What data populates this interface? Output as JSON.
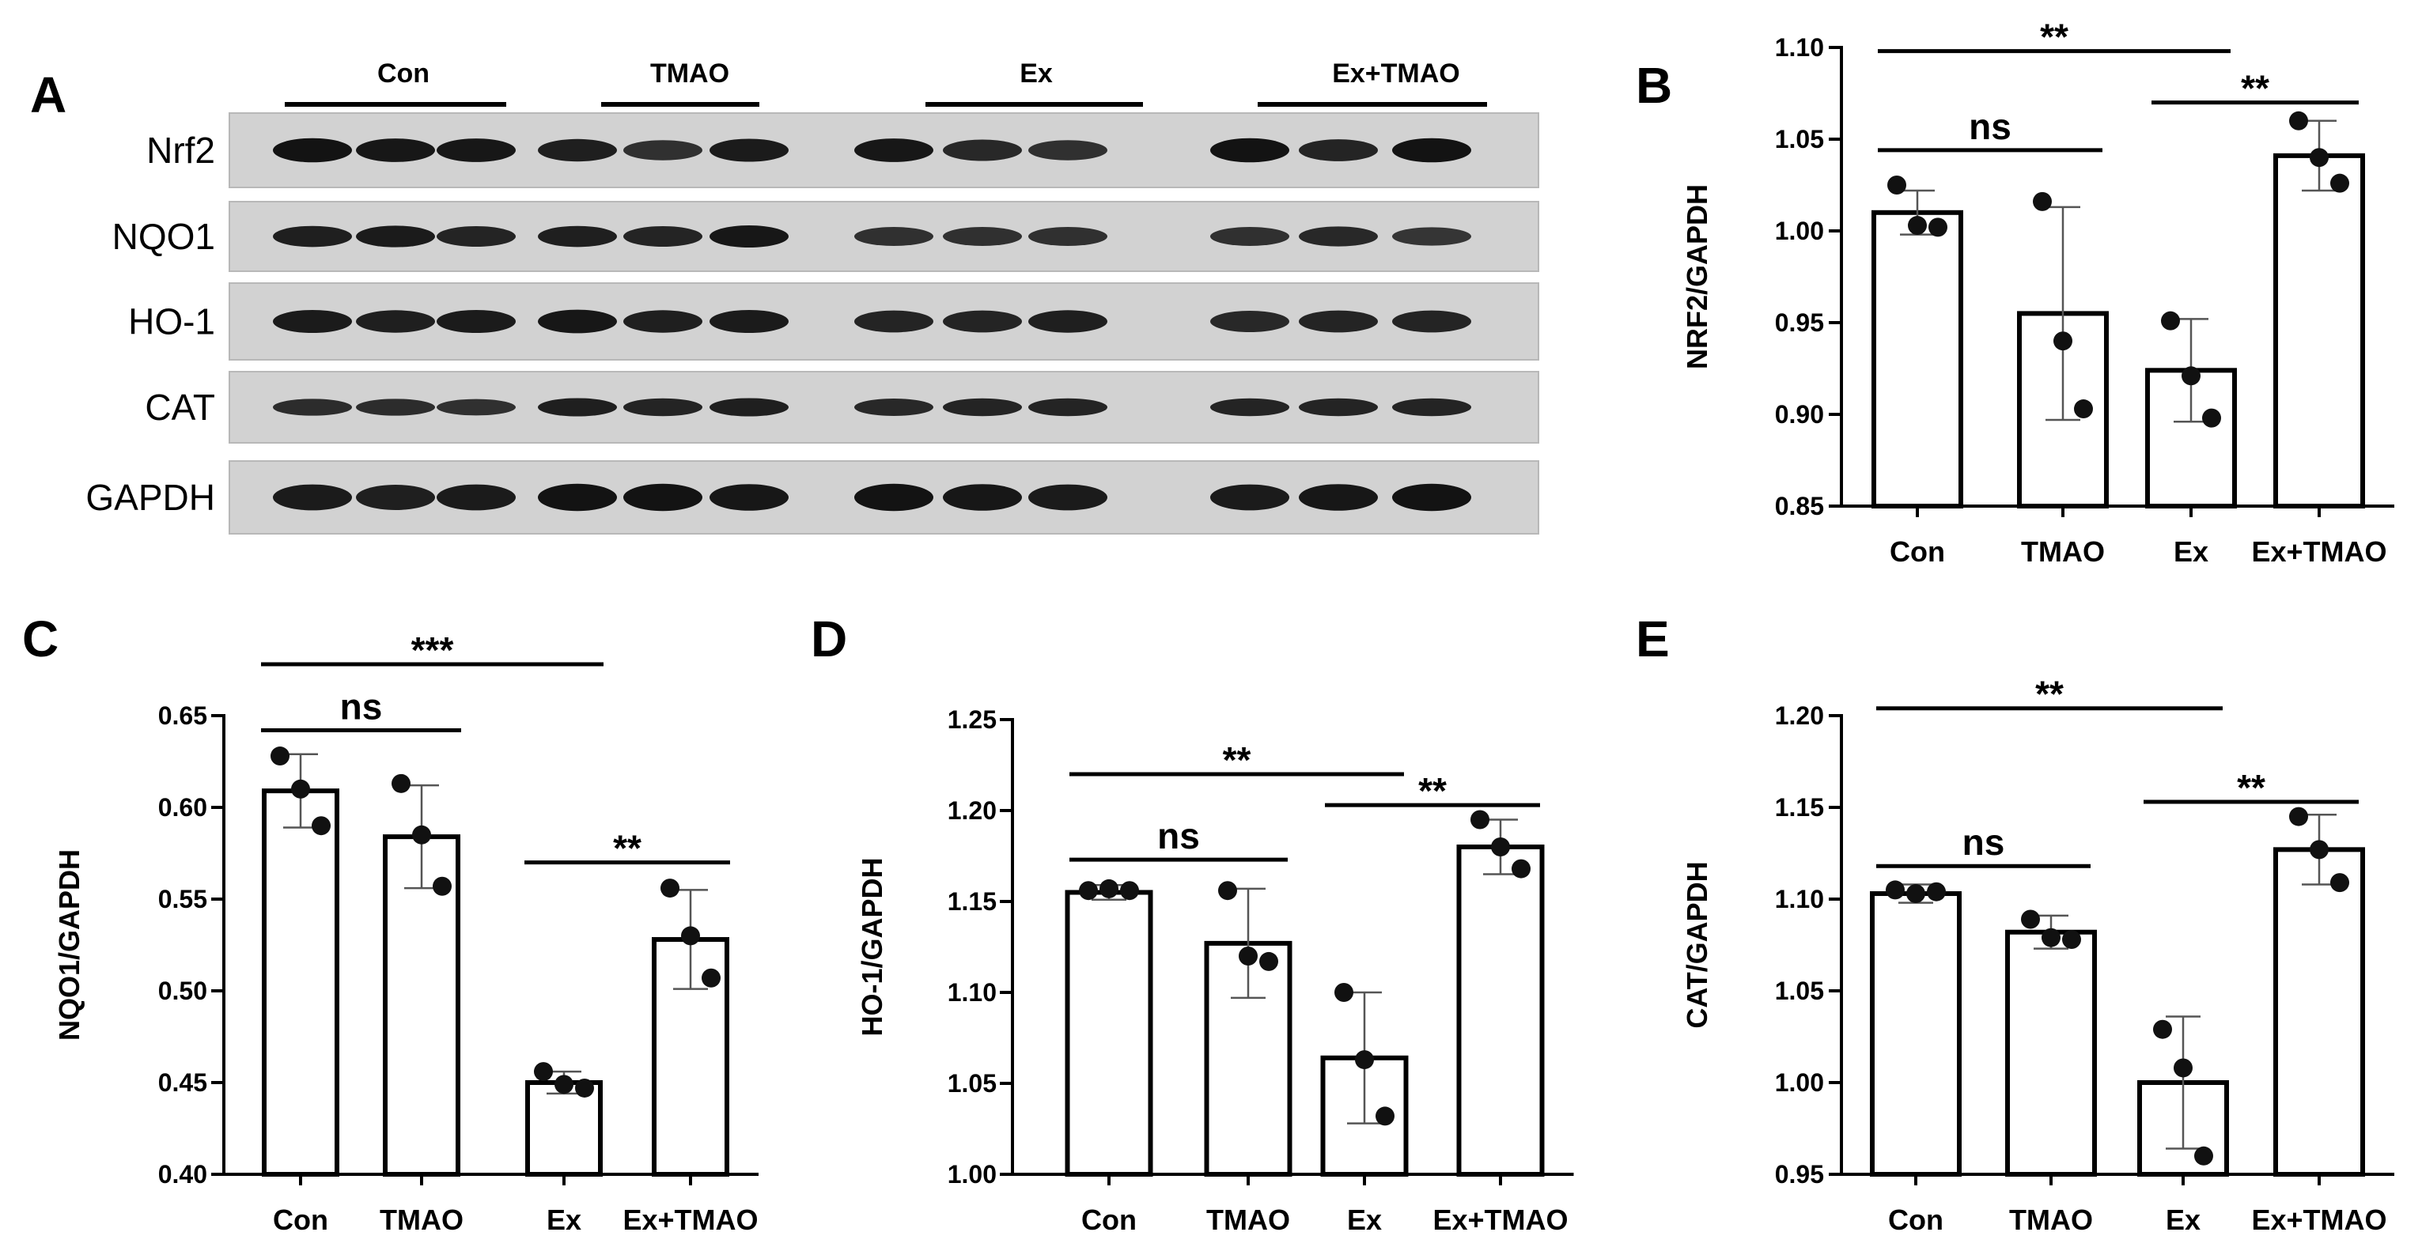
{
  "panel_a": {
    "letter": "A",
    "groups": [
      "Con",
      "TMAO",
      "Ex",
      "Ex+TMAO"
    ],
    "proteins": [
      {
        "label": "Nrf2",
        "intensities": [
          0.9,
          0.85,
          0.85,
          0.75,
          0.55,
          0.8,
          0.85,
          0.65,
          0.55,
          0.9,
          0.7,
          0.9
        ]
      },
      {
        "label": "NQO1",
        "intensities": [
          0.75,
          0.8,
          0.7,
          0.75,
          0.7,
          0.85,
          0.55,
          0.55,
          0.55,
          0.55,
          0.65,
          0.5
        ]
      },
      {
        "label": "HO-1",
        "intensities": [
          0.8,
          0.75,
          0.8,
          0.85,
          0.75,
          0.8,
          0.7,
          0.7,
          0.75,
          0.65,
          0.7,
          0.7
        ]
      },
      {
        "label": "CAT",
        "intensities": [
          0.6,
          0.6,
          0.55,
          0.75,
          0.7,
          0.75,
          0.65,
          0.7,
          0.7,
          0.7,
          0.7,
          0.7
        ]
      },
      {
        "label": "GAPDH",
        "intensities": [
          0.8,
          0.75,
          0.8,
          0.9,
          0.9,
          0.85,
          0.9,
          0.85,
          0.8,
          0.8,
          0.85,
          0.9
        ]
      }
    ]
  },
  "chart_data": [
    {
      "panel": "B",
      "type": "bar",
      "ylabel": "NRF2/GAPDH",
      "categories": [
        "Con",
        "TMAO",
        "Ex",
        "Ex+TMAO"
      ],
      "values": [
        1.01,
        0.955,
        0.924,
        1.041
      ],
      "errors": [
        0.012,
        0.058,
        0.028,
        0.019
      ],
      "points": [
        [
          1.025,
          1.003,
          1.002
        ],
        [
          1.016,
          0.94,
          0.903
        ],
        [
          0.951,
          0.921,
          0.898
        ],
        [
          1.06,
          1.04,
          1.026
        ]
      ],
      "ylim": [
        0.85,
        1.1
      ],
      "yticks": [
        "0.85",
        "0.90",
        "0.95",
        "1.00",
        "1.05",
        "1.10"
      ],
      "comparisons": [
        {
          "from": 0,
          "to": 2,
          "label": "**",
          "y": 1.098
        },
        {
          "from": 0,
          "to": 1,
          "label": "ns",
          "y": 1.044
        },
        {
          "from": 2,
          "to": 3,
          "label": "**",
          "y": 1.07
        }
      ]
    },
    {
      "panel": "C",
      "type": "bar",
      "ylabel": "NQO1/GAPDH",
      "categories": [
        "Con",
        "TMAO",
        "Ex",
        "Ex+TMAO"
      ],
      "values": [
        0.609,
        0.584,
        0.45,
        0.528
      ],
      "errors": [
        0.02,
        0.028,
        0.006,
        0.027
      ],
      "points": [
        [
          0.628,
          0.61,
          0.59
        ],
        [
          0.613,
          0.585,
          0.557
        ],
        [
          0.456,
          0.449,
          0.447
        ],
        [
          0.556,
          0.53,
          0.507
        ]
      ],
      "ylim": [
        0.4,
        0.65
      ],
      "yticks": [
        "0.40",
        "0.45",
        "0.50",
        "0.55",
        "0.60",
        "0.65"
      ],
      "comparisons": [
        {
          "from": 0,
          "to": 2,
          "label": "***",
          "y": 0.678
        },
        {
          "from": 0,
          "to": 1,
          "label": "ns",
          "y": 0.642
        },
        {
          "from": 2,
          "to": 3,
          "label": "**",
          "y": 0.57
        }
      ]
    },
    {
      "panel": "D",
      "type": "bar",
      "ylabel": "HO-1/GAPDH",
      "categories": [
        "Con",
        "TMAO",
        "Ex",
        "Ex+TMAO"
      ],
      "values": [
        1.155,
        1.127,
        1.064,
        1.18
      ],
      "errors": [
        0.004,
        0.03,
        0.036,
        0.015
      ],
      "points": [
        [
          1.156,
          1.157,
          1.156
        ],
        [
          1.156,
          1.12,
          1.117
        ],
        [
          1.1,
          1.063,
          1.032
        ],
        [
          1.195,
          1.18,
          1.168
        ]
      ],
      "ylim": [
        1.0,
        1.25
      ],
      "yticks": [
        "1.00",
        "1.05",
        "1.10",
        "1.15",
        "1.20",
        "1.25"
      ],
      "comparisons": [
        {
          "from": 0,
          "to": 2,
          "label": "**",
          "y": 1.22
        },
        {
          "from": 0,
          "to": 1,
          "label": "ns",
          "y": 1.173
        },
        {
          "from": 2,
          "to": 3,
          "label": "**",
          "y": 1.203
        }
      ]
    },
    {
      "panel": "E",
      "type": "bar",
      "ylabel": "CAT/GAPDH",
      "categories": [
        "Con",
        "TMAO",
        "Ex",
        "Ex+TMAO"
      ],
      "values": [
        1.103,
        1.082,
        1.0,
        1.127
      ],
      "errors": [
        0.005,
        0.009,
        0.036,
        0.019
      ],
      "points": [
        [
          1.105,
          1.103,
          1.104
        ],
        [
          1.089,
          1.079,
          1.078
        ],
        [
          1.029,
          1.008,
          0.96
        ],
        [
          1.145,
          1.127,
          1.109
        ]
      ],
      "ylim": [
        0.95,
        1.2
      ],
      "yticks": [
        "0.95",
        "1.00",
        "1.05",
        "1.10",
        "1.15",
        "1.20"
      ],
      "comparisons": [
        {
          "from": 0,
          "to": 2,
          "label": "**",
          "y": 1.204
        },
        {
          "from": 0,
          "to": 1,
          "label": "ns",
          "y": 1.118
        },
        {
          "from": 2,
          "to": 3,
          "label": "**",
          "y": 1.153
        }
      ]
    }
  ]
}
